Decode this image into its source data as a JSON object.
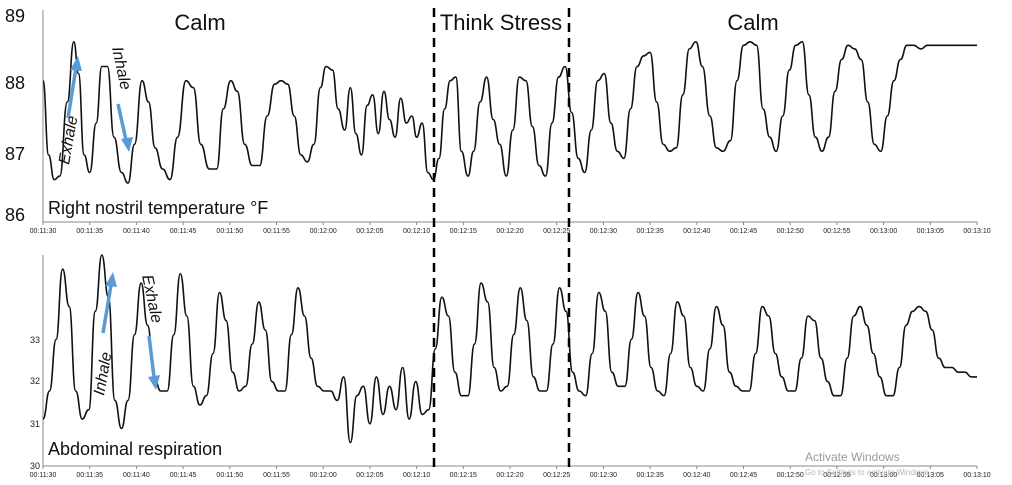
{
  "phases": [
    "Calm",
    "Think Stress",
    "Calm"
  ],
  "chart_data": [
    {
      "type": "line",
      "label": "Right nostril temperature °F",
      "ylim": [
        86,
        89
      ],
      "yticks": [
        "86",
        "87",
        "88",
        "89"
      ],
      "x_tick_labels": [
        "00:11:30",
        "00:11:35",
        "00:11:40",
        "00:11:45",
        "00:11:50",
        "00:11:55",
        "00:12:00",
        "00:12:05",
        "00:12:10",
        "00:12:15",
        "00:12:20",
        "00:12:25",
        "00:12:30",
        "00:12:35",
        "00:12:40",
        "00:12:45",
        "00:12:50",
        "00:12:55",
        "00:13:00",
        "00:13:05",
        "00:13:10"
      ],
      "arrows": {
        "up": "Exhale",
        "down": "Inhale"
      },
      "series": [
        {
          "x": [
            0,
            0.6,
            1.2,
            1.8,
            2.6,
            3.3,
            3.8,
            4.4,
            5.0,
            5.7,
            6.3,
            6.9,
            7.6,
            8.4,
            9.1,
            9.8,
            10.6,
            11.3,
            12.0,
            12.8,
            13.6,
            14.4,
            15.3,
            16.1,
            16.9,
            17.8,
            18.6,
            19.3,
            20.1,
            20.8,
            21.6,
            22.4,
            23.2,
            24.0,
            24.8,
            25.5,
            26.2,
            26.9,
            27.6,
            28.3,
            29.0,
            29.7,
            30.3,
            31.0,
            31.6,
            32.3,
            32.9,
            33.5,
            34.1,
            34.7,
            35.3,
            35.9,
            36.5,
            37.1,
            37.7,
            38.3,
            38.9,
            39.5,
            40.0,
            40.6,
            41.2,
            41.8,
            42.4,
            43.0,
            43.6,
            44.2,
            44.8,
            45.5,
            46.1,
            46.8,
            47.5,
            48.2,
            48.9,
            49.6,
            50.3,
            51.0,
            51.7,
            52.4,
            53.1,
            53.8,
            54.5,
            55.2,
            55.9,
            56.6,
            57.3,
            58.0,
            58.7,
            59.4,
            60.1,
            60.8,
            61.5,
            62.2,
            62.9,
            63.6,
            64.3,
            65.0,
            65.7,
            66.4,
            67.1,
            67.8,
            68.5,
            69.2,
            69.9,
            70.6,
            71.4,
            72.1,
            72.8,
            73.6,
            74.3,
            75.0,
            75.7,
            76.4,
            77.1,
            77.8,
            78.5,
            79.2,
            79.9,
            80.6,
            81.3,
            82.0,
            82.7,
            83.4,
            84.1,
            84.8,
            85.5,
            86.2,
            86.9,
            87.6,
            88.3,
            89.0,
            89.7,
            90.4,
            91.1,
            91.8,
            92.5,
            93.2,
            94.0,
            94.7,
            95.4,
            96.1,
            96.8,
            97.5,
            98.2,
            98.9,
            99.6,
            100
          ],
          "values": [
            88.0,
            86.95,
            86.6,
            86.65,
            87.7,
            88.55,
            88.1,
            86.95,
            86.7,
            87.4,
            88.2,
            88.2,
            87.2,
            86.7,
            86.55,
            87.1,
            88.0,
            87.7,
            87.05,
            86.75,
            86.6,
            87.2,
            88.0,
            87.9,
            87.1,
            86.75,
            86.75,
            87.6,
            88.0,
            87.85,
            87.1,
            86.8,
            86.8,
            87.5,
            87.95,
            88.0,
            87.95,
            87.5,
            86.95,
            86.85,
            87.1,
            87.9,
            88.2,
            88.15,
            87.6,
            87.3,
            87.9,
            87.25,
            86.95,
            87.65,
            87.8,
            87.25,
            87.85,
            87.45,
            87.2,
            87.75,
            87.4,
            87.5,
            87.2,
            87.4,
            86.7,
            86.6,
            86.9,
            87.6,
            88.0,
            88.05,
            87.0,
            86.65,
            87.0,
            87.7,
            88.05,
            87.45,
            87.1,
            86.65,
            87.3,
            88.05,
            88.0,
            87.35,
            86.8,
            86.65,
            87.4,
            88.05,
            88.2,
            87.55,
            86.9,
            86.7,
            87.3,
            88.0,
            88.1,
            87.4,
            87.0,
            86.9,
            87.6,
            88.2,
            88.35,
            88.4,
            87.7,
            87.1,
            87.0,
            87.05,
            87.8,
            88.45,
            88.55,
            88.2,
            87.5,
            87.05,
            87.0,
            87.15,
            88.0,
            88.5,
            88.55,
            88.5,
            87.6,
            87.2,
            87.0,
            87.5,
            88.15,
            88.5,
            88.55,
            87.8,
            87.2,
            87.0,
            87.2,
            87.85,
            88.3,
            88.5,
            88.45,
            88.3,
            87.7,
            87.1,
            87.0,
            87.5,
            88.0,
            88.3,
            88.5,
            88.5,
            88.45,
            88.5,
            88.5,
            88.5,
            88.5,
            88.5,
            88.5,
            88.5,
            88.5,
            88.5
          ]
        }
      ]
    },
    {
      "type": "line",
      "label": "Abdominal respiration",
      "ylim": [
        30,
        34.5
      ],
      "yticks": [
        "30",
        "31",
        "32",
        "33"
      ],
      "x_tick_labels": [
        "00:11:30",
        "00:11:35",
        "00:11:40",
        "00:11:45",
        "00:11:50",
        "00:11:55",
        "00:12:00",
        "00:12:05",
        "00:12:10",
        "00:12:15",
        "00:12:20",
        "00:12:25",
        "00:12:30",
        "00:12:35",
        "00:12:40",
        "00:12:45",
        "00:12:50",
        "00:12:55",
        "00:13:00",
        "00:13:05",
        "00:13:10"
      ],
      "arrows": {
        "up": "Inhale",
        "down": "Exhale"
      },
      "series": [
        {
          "x": [
            0,
            0.7,
            1.4,
            2.1,
            2.8,
            3.5,
            4.2,
            4.9,
            5.6,
            6.3,
            7.0,
            7.7,
            8.4,
            9.1,
            9.8,
            10.5,
            11.2,
            11.9,
            12.6,
            13.3,
            14.0,
            14.7,
            15.4,
            16.1,
            16.8,
            17.5,
            18.2,
            18.9,
            19.6,
            20.3,
            21.0,
            21.7,
            22.4,
            23.1,
            23.8,
            24.5,
            25.2,
            25.9,
            26.6,
            27.3,
            28.0,
            28.7,
            29.4,
            30.1,
            30.8,
            31.5,
            32.2,
            32.9,
            33.6,
            34.3,
            35.0,
            35.7,
            36.4,
            37.1,
            37.8,
            38.5,
            39.2,
            39.9,
            40.6,
            41.3,
            42.0,
            42.7,
            43.4,
            44.1,
            44.8,
            45.5,
            46.2,
            46.9,
            47.6,
            48.3,
            49.0,
            49.7,
            50.4,
            51.1,
            51.8,
            52.5,
            53.2,
            53.9,
            54.6,
            55.3,
            56.0,
            56.7,
            57.4,
            58.1,
            58.8,
            59.5,
            60.2,
            60.9,
            61.6,
            62.3,
            63.0,
            63.7,
            64.4,
            65.1,
            65.8,
            66.5,
            67.2,
            67.9,
            68.6,
            69.3,
            70.0,
            70.7,
            71.4,
            72.1,
            72.8,
            73.5,
            74.2,
            74.9,
            75.6,
            76.3,
            77.0,
            77.7,
            78.4,
            79.1,
            79.8,
            80.5,
            81.2,
            81.9,
            82.6,
            83.3,
            84.0,
            84.7,
            85.4,
            86.1,
            86.8,
            87.5,
            88.2,
            88.9,
            89.6,
            90.3,
            91.0,
            91.7,
            92.4,
            93.1,
            93.8,
            94.5,
            95.2,
            95.9,
            96.6,
            97.3,
            98.0,
            98.7,
            99.4,
            100
          ],
          "values": [
            31.0,
            31.6,
            32.7,
            34.2,
            33.4,
            31.6,
            31.0,
            31.2,
            33.3,
            34.5,
            33.6,
            31.4,
            30.8,
            31.4,
            32.8,
            33.9,
            33.0,
            31.9,
            31.6,
            31.6,
            32.8,
            34.1,
            33.2,
            31.7,
            31.3,
            31.5,
            32.4,
            33.7,
            33.1,
            32.0,
            31.6,
            31.7,
            32.6,
            33.5,
            32.9,
            31.8,
            31.6,
            31.6,
            32.8,
            33.8,
            33.2,
            32.3,
            31.7,
            31.6,
            31.6,
            31.4,
            31.9,
            30.5,
            31.5,
            31.7,
            30.9,
            31.9,
            31.1,
            31.7,
            31.2,
            32.1,
            31.0,
            31.8,
            31.1,
            31.2,
            32.5,
            33.6,
            33.2,
            32.0,
            31.5,
            31.5,
            32.6,
            33.9,
            33.5,
            32.1,
            31.6,
            31.7,
            32.8,
            33.8,
            33.1,
            31.9,
            31.6,
            31.6,
            32.6,
            33.8,
            33.3,
            32.0,
            31.6,
            31.5,
            32.4,
            33.7,
            33.3,
            32.0,
            31.7,
            31.7,
            32.7,
            33.7,
            33.2,
            32.1,
            31.6,
            31.5,
            32.4,
            33.5,
            33.2,
            32.1,
            31.7,
            31.6,
            32.5,
            33.4,
            33.0,
            32.0,
            31.7,
            31.6,
            31.6,
            32.4,
            33.4,
            33.2,
            32.4,
            31.9,
            31.6,
            31.6,
            32.3,
            33.2,
            33.1,
            32.3,
            31.8,
            31.5,
            31.5,
            32.3,
            33.2,
            33.4,
            33.0,
            32.4,
            31.9,
            31.5,
            31.5,
            32.1,
            33.0,
            33.3,
            33.4,
            33.3,
            32.9,
            32.3,
            32.1,
            32.1,
            32.0,
            32.0,
            31.9,
            31.9
          ]
        }
      ]
    }
  ],
  "watermark": {
    "line1": "Activate Windows",
    "line2": "Go to Settings to activate Windows."
  },
  "colors": {
    "arrow": "#5b9bd5",
    "line": "#111111",
    "divider": "#000000"
  }
}
